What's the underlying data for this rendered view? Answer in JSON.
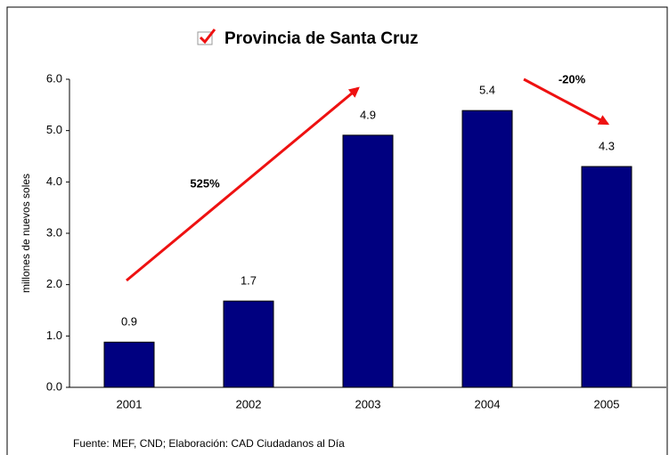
{
  "chart_data": {
    "type": "bar",
    "title": "Provincia de Santa Cruz",
    "ylabel": "millones de nuevos soles",
    "categories": [
      "2001",
      "2002",
      "2003",
      "2004",
      "2005"
    ],
    "values": [
      0.88,
      1.68,
      4.91,
      5.39,
      4.3
    ],
    "value_labels": [
      "0.9",
      "1.7",
      "4.9",
      "5.4",
      "4.3"
    ],
    "color": "#000080",
    "ylim": [
      0,
      6
    ],
    "yticks": [
      {
        "value": 0,
        "label": "0.0"
      },
      {
        "value": 1,
        "label": "1.0"
      },
      {
        "value": 2,
        "label": "2.0"
      },
      {
        "value": 3,
        "label": "3.0"
      },
      {
        "value": 4,
        "label": "4.0"
      },
      {
        "value": 5,
        "label": "5.0"
      },
      {
        "value": 6,
        "label": "6.0"
      }
    ],
    "annotations": [
      "525%",
      "-20%"
    ],
    "source": "Fuente: MEF, CND; Elaboración: CAD Ciudadanos al Día"
  }
}
